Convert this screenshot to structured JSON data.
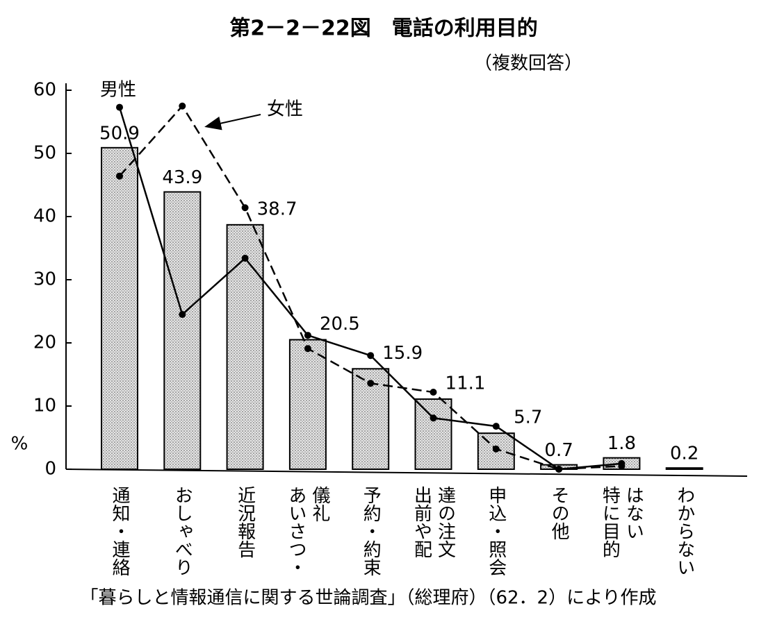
{
  "chart_data": {
    "type": "bar",
    "title": "第2－2－22図　電話の利用目的",
    "subtitle": "（複数回答）",
    "y_label": "%",
    "source": "「暮らしと情報通信に関する世論調査」（総理府）（62．2）により作成",
    "categories": [
      [
        "通知・連絡"
      ],
      [
        "おしゃべり"
      ],
      [
        "近況報告"
      ],
      [
        "あいさつ・",
        "儀礼"
      ],
      [
        "予約・約束"
      ],
      [
        "出前や配",
        "達の注文"
      ],
      [
        "申込・照会"
      ],
      [
        "その他"
      ],
      [
        "特に目的",
        "はない"
      ],
      [
        "わからない"
      ]
    ],
    "values": [
      50.9,
      43.9,
      38.7,
      20.5,
      15.9,
      11.1,
      5.7,
      0.7,
      1.8,
      0.2
    ],
    "color": "#dcdcdc",
    "series": [
      {
        "name": "男性",
        "type": "line",
        "color": "#000000",
        "dash": false,
        "values": [
          57.3,
          24.5,
          33.4,
          21.2,
          18.0,
          8.1,
          6.8,
          0,
          0.9,
          null
        ]
      },
      {
        "name": "女性",
        "type": "line",
        "color": "#000000",
        "dash": true,
        "values": [
          46.4,
          57.5,
          41.4,
          19.1,
          13.6,
          12.2,
          3.2,
          0,
          0.5,
          null
        ]
      }
    ],
    "ylim": [
      0,
      60
    ],
    "yticks": [
      0,
      10,
      20,
      30,
      40,
      50,
      60
    ],
    "grid": false
  }
}
